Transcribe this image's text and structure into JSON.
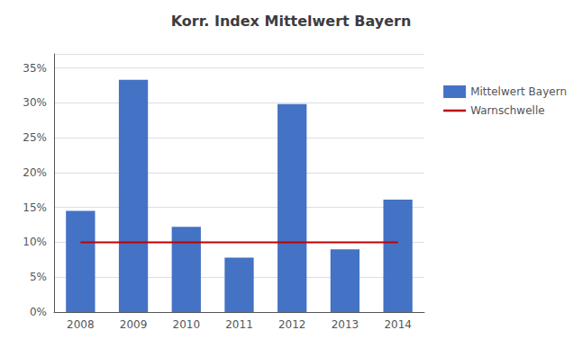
{
  "chart_data": {
    "type": "bar",
    "title": "Korr. Index Mittelwert Bayern",
    "categories": [
      "2008",
      "2009",
      "2010",
      "2011",
      "2012",
      "2013",
      "2014"
    ],
    "series": [
      {
        "name": "Mittelwert Bayern",
        "type": "bar",
        "color": "#4472C4",
        "values": [
          14.5,
          33.3,
          12.2,
          7.8,
          29.8,
          9.0,
          16.1
        ]
      },
      {
        "name": "Warnschwelle",
        "type": "line",
        "color": "#C00000",
        "values": [
          10.0,
          10.0,
          10.0,
          10.0,
          10.0,
          10.0,
          10.0
        ]
      }
    ],
    "ylim": [
      0,
      37
    ],
    "yticks": [
      {
        "value": 0,
        "label": "0%"
      },
      {
        "value": 5,
        "label": "5%"
      },
      {
        "value": 10,
        "label": "10%"
      },
      {
        "value": 15,
        "label": "15%"
      },
      {
        "value": 20,
        "label": "20%"
      },
      {
        "value": 25,
        "label": "25%"
      },
      {
        "value": 30,
        "label": "30%"
      },
      {
        "value": 35,
        "label": "35%"
      }
    ],
    "grid": true,
    "legend": "right"
  }
}
